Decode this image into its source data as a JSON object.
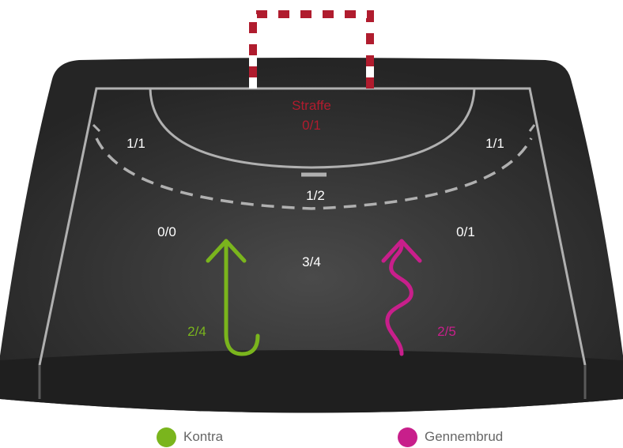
{
  "colors": {
    "court_dark": "#2a2a2a",
    "court_center": "#4a4a4a",
    "court_edge": "#202020",
    "lines": "#b0b0b0",
    "goal_red": "#b01c2e",
    "goal_white": "#ffffff",
    "text_white": "#ffffff",
    "kontra": "#7ab51d",
    "gennembrud": "#c81f8b",
    "legend_text": "#666666"
  },
  "zones": {
    "penalty": {
      "label": "Straffe",
      "value": "0/1"
    },
    "left_wing": {
      "value": "1/1"
    },
    "right_wing": {
      "value": "1/1"
    },
    "center_6m": {
      "value": "1/2"
    },
    "left_back": {
      "value": "0/0"
    },
    "right_back": {
      "value": "0/1"
    },
    "center_9m": {
      "value": "3/4"
    },
    "kontra": {
      "value": "2/4"
    },
    "gennembrud": {
      "value": "2/5"
    }
  },
  "legend": {
    "kontra": {
      "label": "Kontra"
    },
    "gennembrud": {
      "label": "Gennembrud"
    }
  },
  "icons": {
    "kontra": "hook-arrow-up-icon",
    "gennembrud": "wavy-arrow-up-icon"
  }
}
